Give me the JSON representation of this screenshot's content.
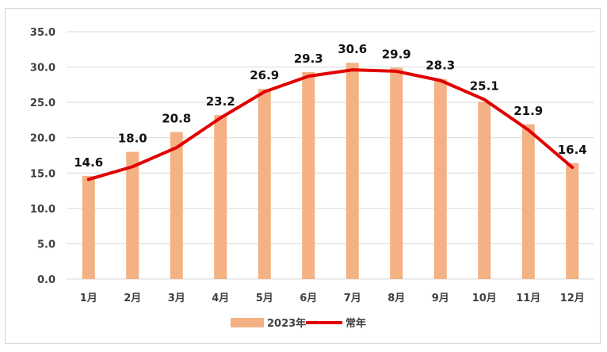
{
  "chart_data": {
    "type": "bar",
    "title": "",
    "xlabel": "",
    "ylabel": "",
    "categories": [
      "1月",
      "2月",
      "3月",
      "4月",
      "5月",
      "6月",
      "7月",
      "8月",
      "9月",
      "10月",
      "11月",
      "12月"
    ],
    "series": [
      {
        "name": "2023年",
        "kind": "bar",
        "color": "#f4b183",
        "values": [
          14.6,
          18.0,
          20.8,
          23.2,
          26.9,
          29.3,
          30.6,
          29.9,
          28.3,
          25.1,
          21.9,
          16.4
        ],
        "labels": [
          "14.6",
          "18.0",
          "20.8",
          "23.2",
          "26.9",
          "29.3",
          "30.6",
          "29.9",
          "28.3",
          "25.1",
          "21.9",
          "16.4"
        ]
      },
      {
        "name": "常年",
        "kind": "line",
        "color": "#e00000",
        "values": [
          14.1,
          15.9,
          18.6,
          22.8,
          26.5,
          28.7,
          29.6,
          29.4,
          28.1,
          25.4,
          21.1,
          15.8
        ]
      }
    ],
    "ylim": [
      0,
      35
    ],
    "yticks": [
      "0.0",
      "5.0",
      "10.0",
      "15.0",
      "20.0",
      "25.0",
      "30.0",
      "35.0"
    ],
    "grid": true,
    "legend": "bottom"
  }
}
